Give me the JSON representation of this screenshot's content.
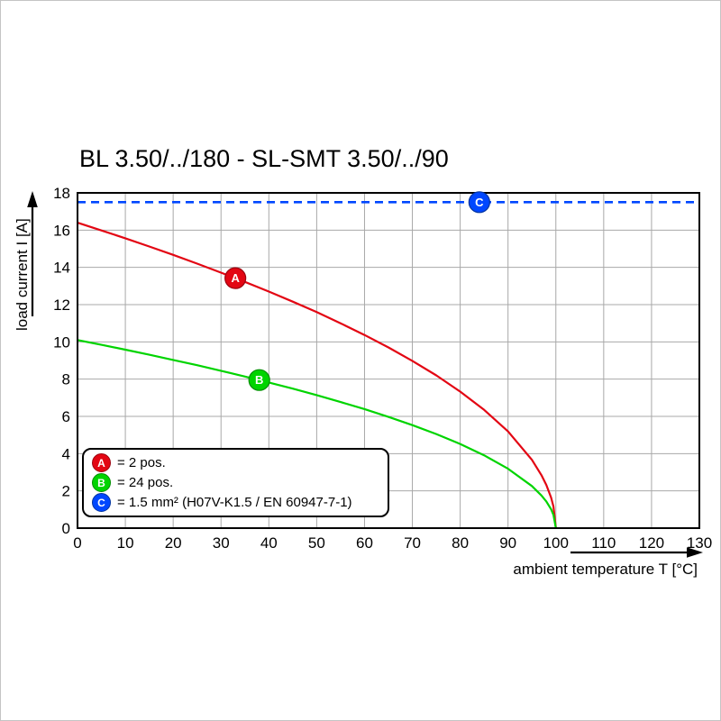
{
  "chart_data": {
    "type": "line",
    "title": "BL 3.50/../180 - SL-SMT 3.50/../90",
    "xlabel": "ambient temperature T [°C]",
    "ylabel": "load current I [A]",
    "xlim": [
      0,
      130
    ],
    "ylim": [
      0,
      18
    ],
    "xticks": [
      0,
      10,
      20,
      30,
      40,
      50,
      60,
      70,
      80,
      90,
      100,
      110,
      120,
      130
    ],
    "yticks": [
      0,
      2,
      4,
      6,
      8,
      10,
      12,
      14,
      16,
      18
    ],
    "grid": true,
    "grid_color": "#a8a8a8",
    "frame_color": "#000000",
    "legend_position": "bottom-left-inside",
    "series": [
      {
        "name": "A",
        "legend": "= 2 pos.",
        "color": "#e30613",
        "stroke": "#9b0410",
        "style": "solid-curve",
        "points": [
          [
            0,
            16.4
          ],
          [
            5,
            15.98
          ],
          [
            10,
            15.56
          ],
          [
            15,
            15.12
          ],
          [
            20,
            14.67
          ],
          [
            25,
            14.2
          ],
          [
            30,
            13.72
          ],
          [
            35,
            13.22
          ],
          [
            40,
            12.7
          ],
          [
            45,
            12.16
          ],
          [
            50,
            11.6
          ],
          [
            55,
            11.0
          ],
          [
            60,
            10.37
          ],
          [
            65,
            9.7
          ],
          [
            70,
            8.98
          ],
          [
            75,
            8.2
          ],
          [
            80,
            7.33
          ],
          [
            85,
            6.35
          ],
          [
            90,
            5.19
          ],
          [
            95,
            3.67
          ],
          [
            97,
            2.84
          ],
          [
            98,
            2.32
          ],
          [
            99,
            1.64
          ],
          [
            99.5,
            1.16
          ],
          [
            100,
            0
          ]
        ],
        "marker": {
          "t": 33,
          "i": 13.42,
          "label": "A"
        }
      },
      {
        "name": "B",
        "legend": "= 24 pos.",
        "color": "#00d400",
        "stroke": "#008f00",
        "style": "solid-curve",
        "points": [
          [
            0,
            10.1
          ],
          [
            5,
            9.84
          ],
          [
            10,
            9.58
          ],
          [
            15,
            9.31
          ],
          [
            20,
            9.03
          ],
          [
            25,
            8.75
          ],
          [
            30,
            8.45
          ],
          [
            35,
            8.14
          ],
          [
            40,
            7.82
          ],
          [
            45,
            7.49
          ],
          [
            50,
            7.14
          ],
          [
            55,
            6.77
          ],
          [
            60,
            6.39
          ],
          [
            65,
            5.97
          ],
          [
            70,
            5.53
          ],
          [
            75,
            5.05
          ],
          [
            80,
            4.52
          ],
          [
            85,
            3.91
          ],
          [
            90,
            3.19
          ],
          [
            95,
            2.26
          ],
          [
            97,
            1.75
          ],
          [
            98,
            1.43
          ],
          [
            99,
            1.01
          ],
          [
            99.5,
            0.71
          ],
          [
            100,
            0
          ]
        ],
        "marker": {
          "t": 38,
          "i": 7.95,
          "label": "B"
        }
      },
      {
        "name": "C",
        "legend": "= 1.5 mm² (H07V-K1.5 / EN 60947-7-1)",
        "color": "#0047ff",
        "stroke": "#0033a0",
        "style": "dashed-horizontal",
        "value": 17.5,
        "x_range": [
          0,
          130
        ],
        "marker": {
          "t": 84,
          "i": 17.5,
          "label": "C"
        }
      }
    ]
  }
}
